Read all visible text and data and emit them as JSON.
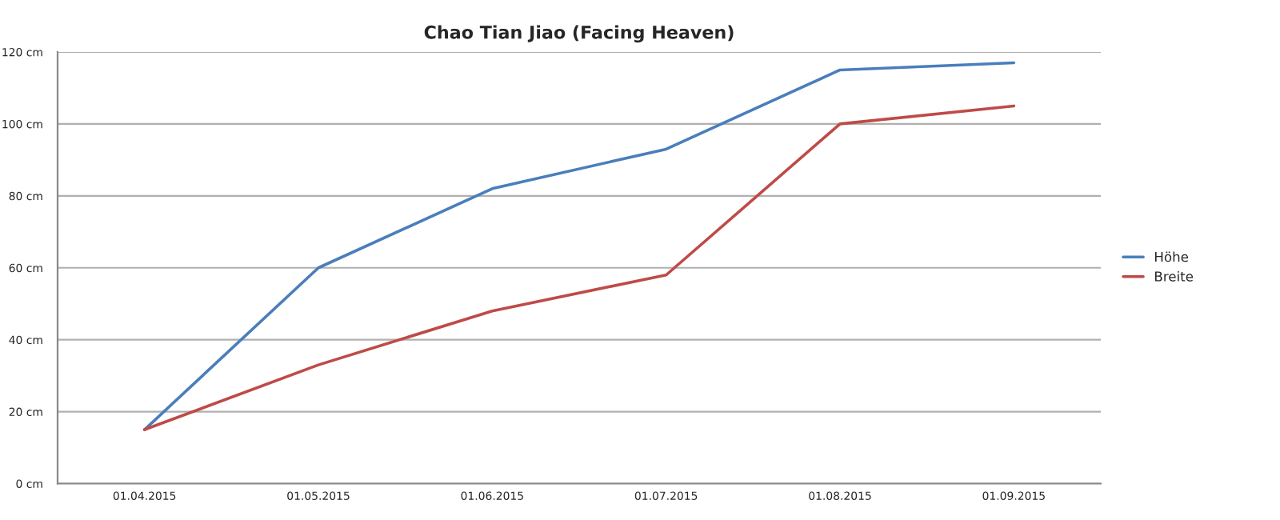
{
  "chart_data": {
    "type": "line",
    "title": "Chao Tian Jiao (Facing Heaven)",
    "categories": [
      "01.04.2015",
      "01.05.2015",
      "01.06.2015",
      "01.07.2015",
      "01.08.2015",
      "01.09.2015"
    ],
    "series": [
      {
        "name": "Höhe",
        "color": "#4a7ebb",
        "values": [
          15,
          60,
          82,
          93,
          115,
          117
        ]
      },
      {
        "name": "Breite",
        "color": "#be4b48",
        "values": [
          15,
          33,
          48,
          58,
          100,
          105
        ]
      }
    ],
    "ylim": [
      0,
      120
    ],
    "yticks": [
      {
        "value": 0,
        "label": "0 cm"
      },
      {
        "value": 20,
        "label": "20 cm"
      },
      {
        "value": 40,
        "label": "40 cm"
      },
      {
        "value": 60,
        "label": "60 cm"
      },
      {
        "value": 80,
        "label": "80 cm"
      },
      {
        "value": 100,
        "label": "100 cm"
      },
      {
        "value": 120,
        "label": "120 cm"
      }
    ],
    "grid": "y",
    "legend": "right",
    "marker": "none",
    "line_style": "solid"
  }
}
